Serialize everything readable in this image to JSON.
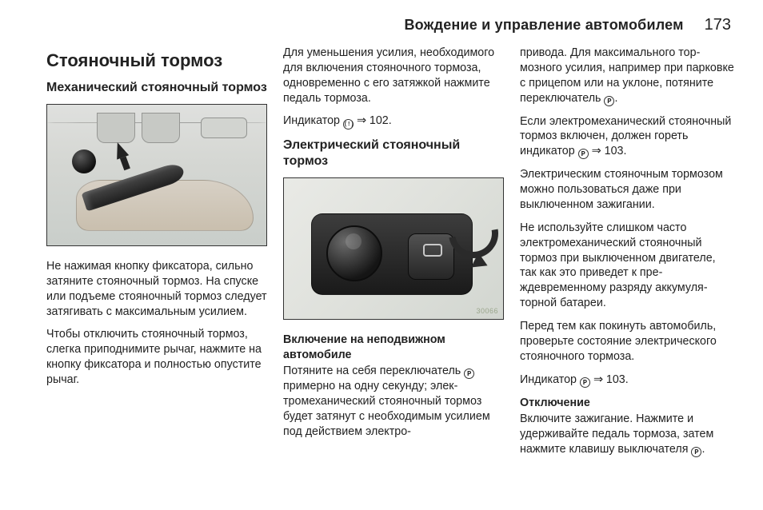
{
  "header": {
    "section_title": "Вождение и управление автомобилем",
    "page_number": "173"
  },
  "col1": {
    "h1": "Стояночный тормоз",
    "h2": "Механический стояночный тормоз",
    "p1": "Не нажимая кнопку фиксатора, сильно затяните стояночный тор­моз. На спуске или подъеме стоя­ночный тормоз следует затягивать с максимальным усилием.",
    "p2": "Чтобы отключить стояночный тор­моз, слегка приподнимите рычаг, нажмите на кнопку фиксатора и полностью опустите рычаг."
  },
  "col2": {
    "p1": "Для уменьшения усилия, необхо­димого для включения стояночного тормоза, одновременно с его за­тяжкой нажмите педаль тормоза.",
    "indicator_prefix": "Индикатор ",
    "indicator_glyph": "(!)",
    "indicator_arrow": " ⇒ ",
    "indicator_page": "102.",
    "h2": "Электрический стояночный тормоз",
    "img_tag": "30066",
    "h3": "Включение на неподвижном автомобиле",
    "p3a": "Потяните на себя переключатель ",
    "p3_glyph": "P",
    "p3b": " примерно на одну секунду; элек­тромеханический стояночный тор­моз будет затянут с необходимым усилием под действием электро-"
  },
  "col3": {
    "p1a": "привода. Для максимального тор­мозного усилия, например при пар­ковке с прицепом или на уклоне, потяните переключатель ",
    "p1_glyph": "P",
    "p1b": ".",
    "p2a": "Если электромеханический стоя­ночный тормоз включен, должен гореть индикатор ",
    "p2_glyph": "P",
    "p2_arrow": " ⇒ ",
    "p2_page": "103.",
    "p3": "Электрическим стояночным тормо­зом можно пользоваться даже при выключенном зажигании.",
    "p4": "Не используйте слишком часто электромеханический стояночный тормоз при выключенном двига­теле, так как это приведет к пре­ждевременному разряду аккумуля­торной батареи.",
    "p5": "Перед тем как покинуть автомо­биль, проверьте состояние элек­трического стояночного тормоза.",
    "p6a": "Индикатор ",
    "p6_glyph": "P",
    "p6_arrow": " ⇒ ",
    "p6_page": "103.",
    "h3": "Отключение",
    "p7a": "Включите зажигание. Нажмите и удерживайте педаль тормоза, за­тем нажмите клавишу выключа­теля ",
    "p7_glyph": "P",
    "p7b": "."
  }
}
